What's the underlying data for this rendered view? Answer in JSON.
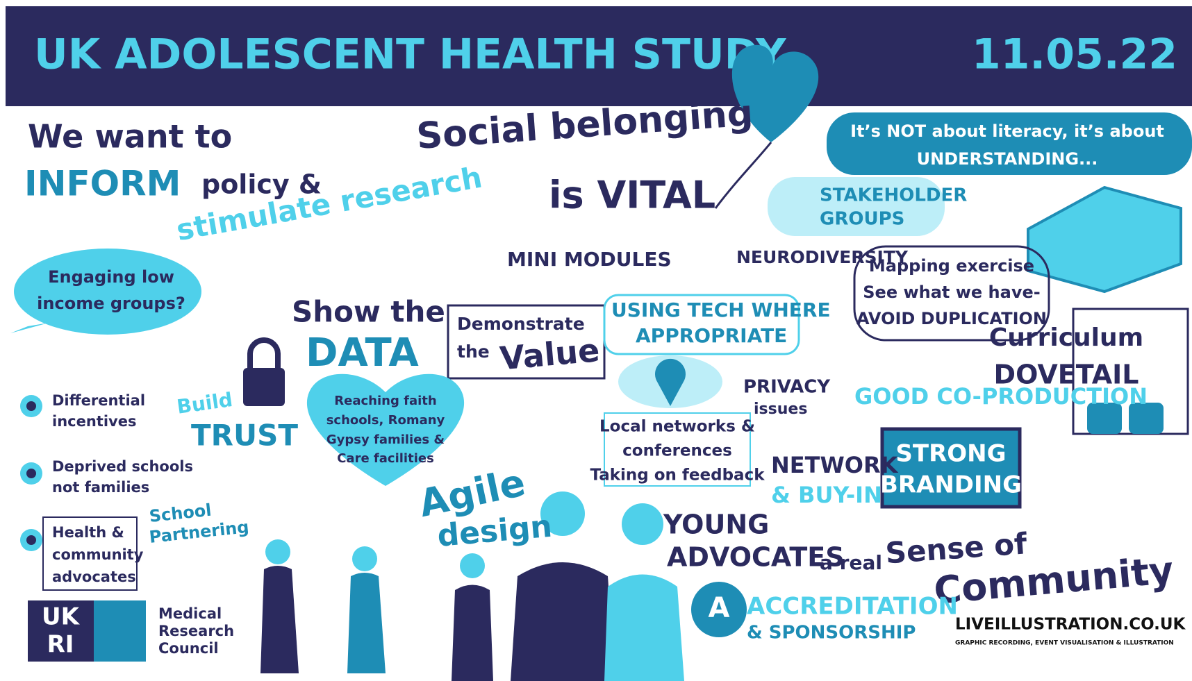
{
  "header": {
    "title": "UK ADOLESCENT HEALTH STUDY",
    "date": "11.05.22"
  },
  "notes": [
    {
      "lines": [
        "We want to",
        "INFORM",
        "policy &",
        "stimulate research"
      ]
    },
    {
      "lines": [
        "Social belonging",
        "is VITAL"
      ]
    },
    {
      "lines": [
        "It’s NOT about literacy, it’s about",
        "UNDERSTANDING..."
      ]
    },
    {
      "lines": [
        "STAKEHOLDER",
        "GROUPS"
      ]
    },
    {
      "lines": [
        "Engaging low",
        "income groups?"
      ]
    },
    {
      "lines": [
        "MINI MODULES"
      ]
    },
    {
      "lines": [
        "NEURODIVERSITY"
      ]
    },
    {
      "lines": [
        "Mapping exercise",
        "See what we have-",
        "AVOID DUPLICATION"
      ]
    },
    {
      "lines": [
        "Show the",
        "DATA"
      ]
    },
    {
      "lines": [
        "Demonstrate",
        "the",
        "Value"
      ]
    },
    {
      "lines": [
        "USING TECH WHERE",
        "APPROPRIATE"
      ]
    },
    {
      "lines": [
        "Curriculum",
        "DOVETAIL"
      ]
    },
    {
      "lines": [
        "GOOD CO-PRODUCTION"
      ]
    },
    {
      "lines": [
        "Differential",
        "incentives"
      ]
    },
    {
      "lines": [
        "Build",
        "TRUST"
      ]
    },
    {
      "lines": [
        "Reaching faith",
        "schools, Romany",
        "Gypsy families &",
        "Care facilities"
      ]
    },
    {
      "lines": [
        "PRIVACY",
        "issues"
      ]
    },
    {
      "lines": [
        "Local networks &",
        "conferences",
        "Taking on feedback"
      ]
    },
    {
      "lines": [
        "Deprived schools",
        "not families"
      ]
    },
    {
      "lines": [
        "NETWORK",
        "& BUY-IN"
      ]
    },
    {
      "lines": [
        "STRONG",
        "BRANDING"
      ]
    },
    {
      "lines": [
        "School",
        "Partnering"
      ]
    },
    {
      "lines": [
        "Agile",
        "design"
      ]
    },
    {
      "lines": [
        "YOUNG",
        "ADVOCATES"
      ]
    },
    {
      "lines": [
        "Health &",
        "community",
        "advocates"
      ]
    },
    {
      "lines": [
        "a real",
        "Sense of",
        "Community"
      ]
    },
    {
      "lines": [
        "A"
      ]
    },
    {
      "lines": [
        "ACCREDITATION",
        "& SPONSORSHIP"
      ]
    },
    {
      "lines": [
        "LIVEILLUSTRATION.CO.UK",
        "GRAPHIC RECORDING, EVENT VISUALISATION & ILLUSTRATION"
      ]
    }
  ],
  "logo": {
    "ukri": [
      "UK",
      "RI"
    ],
    "council": [
      "Medical",
      "Research",
      "Council"
    ]
  }
}
